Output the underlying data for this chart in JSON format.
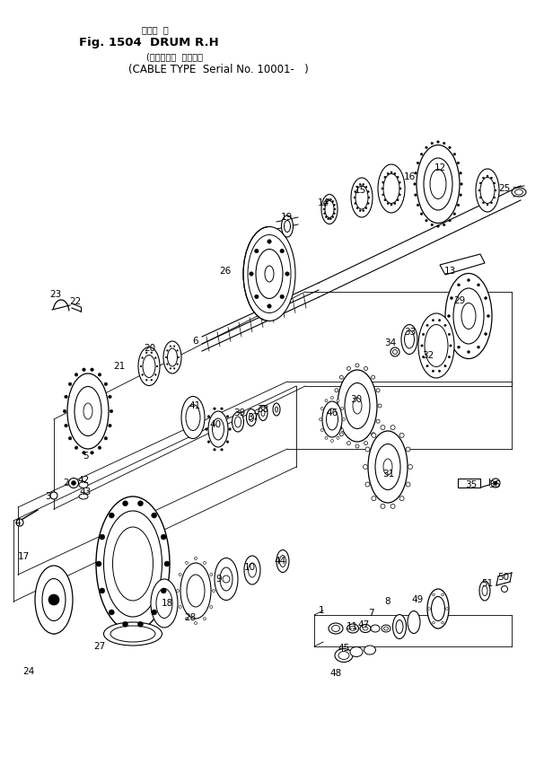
{
  "title_line1": "ドラム  右",
  "title_line2": "Fig. 1504  DRUM R.H",
  "title_line3": "(ケーブル式  適用号等",
  "title_line4": "(CABLE TYPE  Serial No. 10001-   )",
  "bg_color": "#ffffff",
  "lc": "#000000"
}
